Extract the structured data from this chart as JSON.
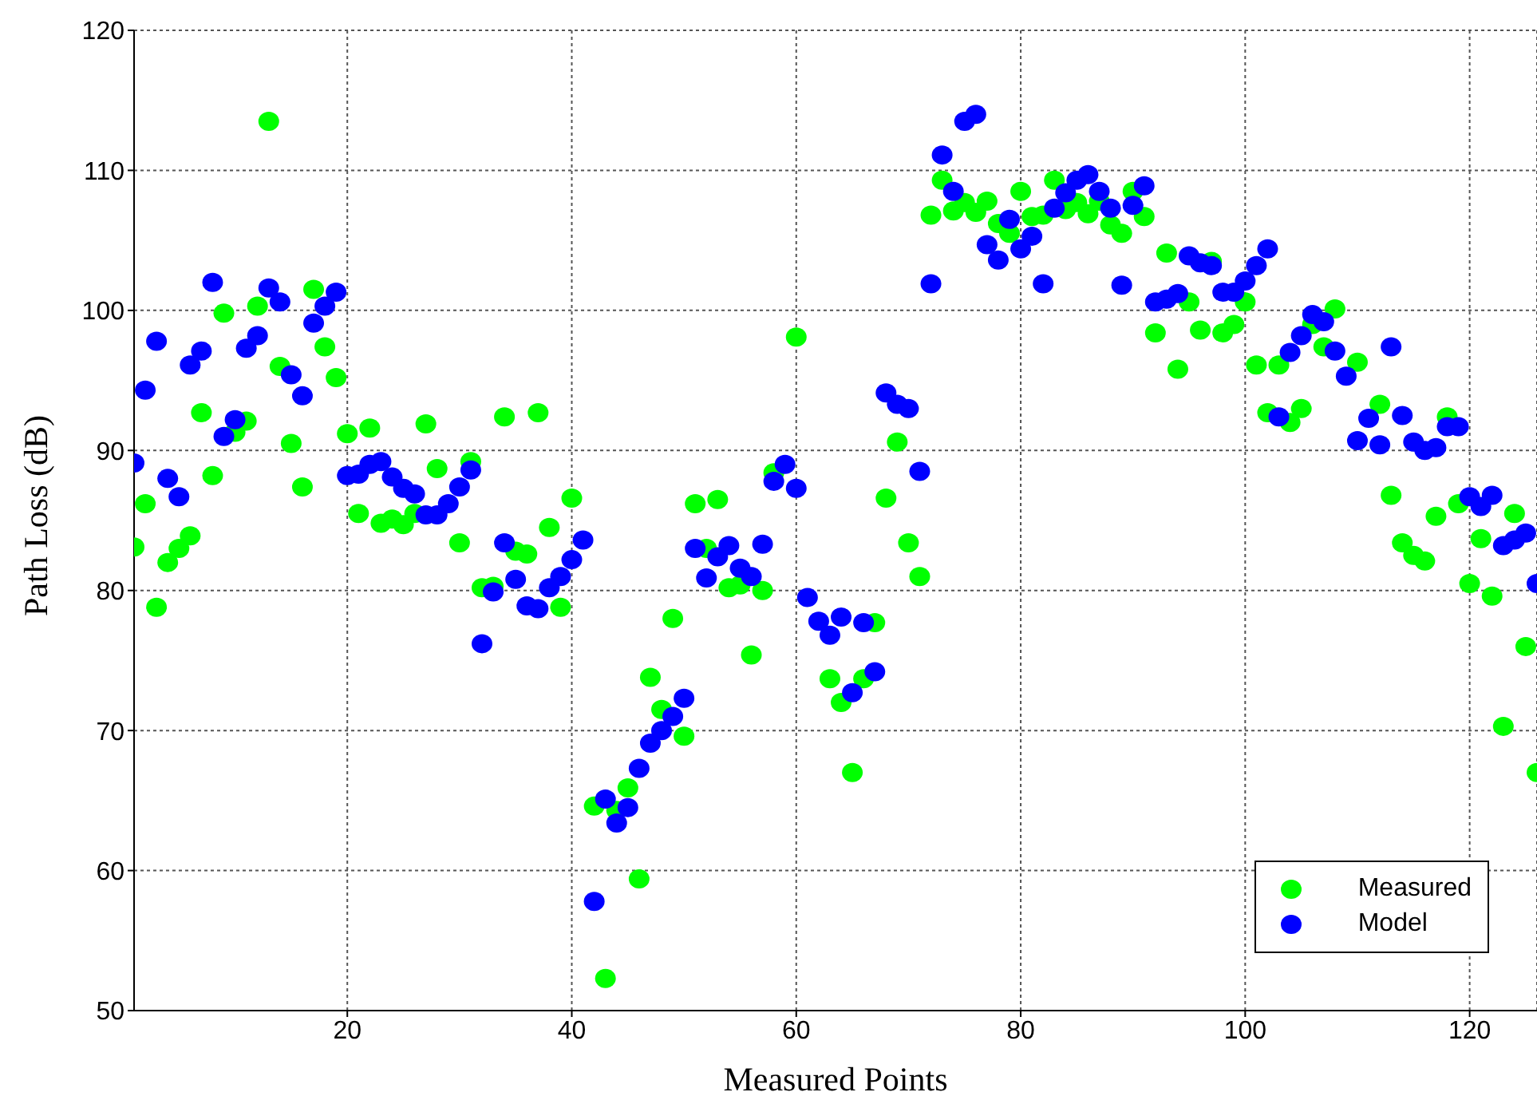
{
  "chart_data": {
    "type": "scatter",
    "xlabel": "Measured Points",
    "ylabel": "Path Loss (dB)",
    "x": [
      1,
      2,
      3,
      4,
      5,
      6,
      7,
      8,
      9,
      10,
      11,
      12,
      13,
      14,
      15,
      16,
      17,
      18,
      19,
      20,
      21,
      22,
      23,
      24,
      25,
      26,
      27,
      28,
      29,
      30,
      31,
      32,
      33,
      34,
      35,
      36,
      37,
      38,
      39,
      40,
      41,
      42,
      43,
      44,
      45,
      46,
      47,
      48,
      49,
      50,
      51,
      52,
      53,
      54,
      55,
      56,
      57,
      58,
      59,
      60,
      61,
      62,
      63,
      64,
      65,
      66,
      67,
      68,
      69,
      70,
      71,
      72,
      73,
      74,
      75,
      76,
      77,
      78,
      79,
      80,
      81,
      82,
      83,
      84,
      85,
      86,
      87,
      88,
      89,
      90,
      91,
      92,
      93,
      94,
      95,
      96,
      97,
      98,
      99,
      100,
      101,
      102,
      103,
      104,
      105,
      106,
      107,
      108,
      109,
      110,
      111,
      112,
      113,
      114,
      115,
      116,
      117,
      118,
      119,
      120,
      121,
      122,
      123,
      124,
      125,
      126
    ],
    "series": [
      {
        "name": "Measured",
        "color": "#00ff00",
        "values": [
          83.1,
          86.2,
          78.8,
          82,
          83,
          83.9,
          92.7,
          88.2,
          99.8,
          91.3,
          92.1,
          100.3,
          113.5,
          96,
          90.5,
          87.4,
          101.5,
          97.4,
          95.2,
          91.2,
          85.5,
          91.6,
          84.8,
          85.1,
          84.7,
          85.5,
          91.9,
          88.7,
          null,
          83.4,
          89.2,
          80.2,
          80.3,
          92.4,
          82.8,
          82.6,
          92.7,
          84.5,
          78.8,
          86.6,
          null,
          64.6,
          52.3,
          64.3,
          65.9,
          59.4,
          73.8,
          71.5,
          78,
          69.6,
          86.2,
          83,
          86.5,
          80.2,
          80.4,
          75.4,
          80,
          88.4,
          null,
          98.1,
          null,
          null,
          73.7,
          72,
          67,
          73.7,
          77.7,
          86.6,
          90.6,
          83.4,
          81,
          106.8,
          109.3,
          107.1,
          107.7,
          107,
          107.8,
          106.2,
          105.5,
          108.5,
          106.7,
          106.8,
          109.3,
          107.2,
          107.7,
          106.9,
          107.8,
          106.1,
          105.5,
          108.5,
          106.7,
          98.4,
          104.1,
          95.8,
          100.6,
          98.6,
          103.5,
          98.4,
          99,
          100.6,
          96.1,
          92.7,
          96.1,
          92,
          93,
          99,
          97.4,
          100.1,
          null,
          96.3,
          null,
          93.3,
          86.8,
          83.4,
          82.5,
          82.1,
          85.3,
          92.4,
          86.2,
          80.5,
          83.7,
          79.6,
          70.3,
          85.5,
          76,
          67
        ]
      },
      {
        "name": "Model",
        "color": "#0000ff",
        "values": [
          89.1,
          94.3,
          97.8,
          88,
          86.7,
          96.1,
          97.1,
          102,
          91,
          92.2,
          97.3,
          98.2,
          101.6,
          100.6,
          95.4,
          93.9,
          99.1,
          100.3,
          101.3,
          88.2,
          88.3,
          89,
          89.2,
          88.1,
          87.3,
          86.9,
          85.4,
          85.4,
          86.2,
          87.4,
          88.6,
          76.2,
          79.9,
          83.4,
          80.8,
          78.9,
          78.7,
          80.2,
          81,
          82.2,
          83.6,
          57.8,
          65.1,
          63.4,
          64.5,
          67.3,
          69.1,
          70,
          71,
          72.3,
          83,
          80.9,
          82.4,
          83.2,
          81.6,
          81,
          83.3,
          87.8,
          89,
          87.3,
          79.5,
          77.8,
          76.8,
          78.1,
          72.7,
          77.7,
          74.2,
          94.1,
          93.3,
          93,
          88.5,
          101.9,
          111.1,
          108.5,
          113.5,
          114,
          104.7,
          103.6,
          106.5,
          104.4,
          105.3,
          101.9,
          107.3,
          108.4,
          109.3,
          109.7,
          108.5,
          107.3,
          101.8,
          107.5,
          108.9,
          100.6,
          100.8,
          101.2,
          103.9,
          103.4,
          103.2,
          101.3,
          101.3,
          102.1,
          103.2,
          104.4,
          92.4,
          97,
          98.2,
          99.7,
          99.2,
          97.1,
          95.3,
          90.7,
          92.3,
          90.4,
          97.4,
          92.5,
          90.6,
          90,
          90.2,
          91.7,
          91.7,
          86.7,
          86,
          86.8,
          83.2,
          83.6,
          84.1,
          80.5
        ]
      }
    ],
    "xlim": [
      1,
      126
    ],
    "xticks": [
      20,
      40,
      60,
      80,
      100,
      120
    ],
    "ylim": [
      50,
      120
    ],
    "yticks": [
      50,
      60,
      70,
      80,
      90,
      100,
      110,
      120
    ],
    "grid": true,
    "legend": "bottom right",
    "marker": "circle"
  }
}
